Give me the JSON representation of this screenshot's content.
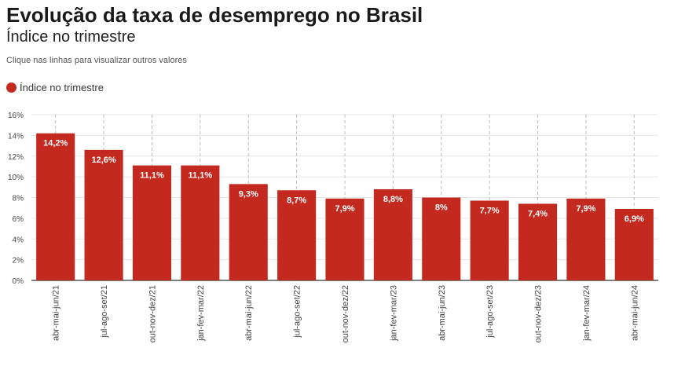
{
  "header": {
    "title": "Evolução da taxa de desemprego no Brasil",
    "subtitle": "Índice no trimestre",
    "hint": "Clique nas linhas para visualizar outros valores"
  },
  "legend": {
    "label": "Índice no trimestre",
    "color": "#c4291f"
  },
  "chart_data": {
    "type": "bar",
    "categories": [
      "abr-mai-jun/21",
      "jul-ago-set/21",
      "out-nov-dez/21",
      "jan-fev-mar/22",
      "abr-mai-jun/22",
      "jul-ago-set/22",
      "out-nov-dez/22",
      "jan-fev-mar/23",
      "abr-mai-jun/23",
      "jul-ago-set/23",
      "out-nov-dez/23",
      "jan-fev-mar/24",
      "abr-mai-jun/24"
    ],
    "series": [
      {
        "name": "Índice no trimestre",
        "values": [
          14.2,
          12.6,
          11.1,
          11.1,
          9.3,
          8.7,
          7.9,
          8.8,
          8.0,
          7.7,
          7.4,
          7.9,
          6.9
        ],
        "labels": [
          "14,2%",
          "12,6%",
          "11,1%",
          "11,1%",
          "9,3%",
          "8,7%",
          "7,9%",
          "8,8%",
          "8%",
          "7,7%",
          "7,4%",
          "7,9%",
          "6,9%"
        ]
      }
    ],
    "ylim": [
      0,
      16
    ],
    "yticks": [
      0,
      2,
      4,
      6,
      8,
      10,
      12,
      14,
      16
    ],
    "ytick_labels": [
      "0%",
      "2%",
      "4%",
      "6%",
      "8%",
      "10%",
      "12%",
      "14%",
      "16%"
    ],
    "xlabel": "",
    "ylabel": "",
    "grid": true,
    "legend_position": "top-left"
  }
}
